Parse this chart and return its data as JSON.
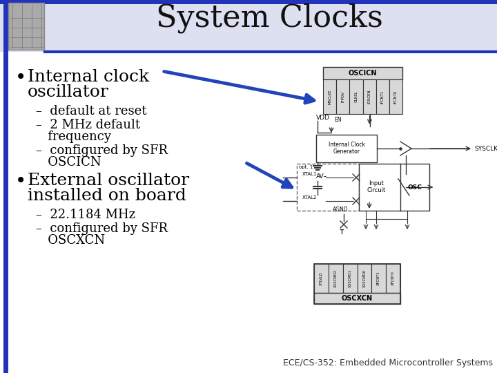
{
  "title": "System Clocks",
  "title_fontsize": 32,
  "background_color": "#ffffff",
  "header_bg": "#dde0f0",
  "border_blue": "#2233bb",
  "bullet1_line1": "Internal clock",
  "bullet1_line2": "oscillator",
  "sub1_1": "–  default at reset",
  "sub1_2": "–  2 MHz default",
  "sub1_2b": "   frequency",
  "sub1_3": "–  configured by SFR",
  "sub1_3b": "   OSCICN",
  "bullet2_line1": "External oscillator",
  "bullet2_line2": "installed on board",
  "sub2_1": "–  22.1184 MHz",
  "sub2_2": "–  configured by SFR",
  "sub2_2b": "   OSCXCN",
  "footer": "ECE/CS-352: Embedded Microcontroller Systems",
  "bullet_fontsize": 18,
  "sub_fontsize": 13,
  "footer_fontsize": 9,
  "arrow_color": "#2244bb",
  "circuit_color": "#333333",
  "reg_fill": "#d8d8d8",
  "white": "#ffffff"
}
